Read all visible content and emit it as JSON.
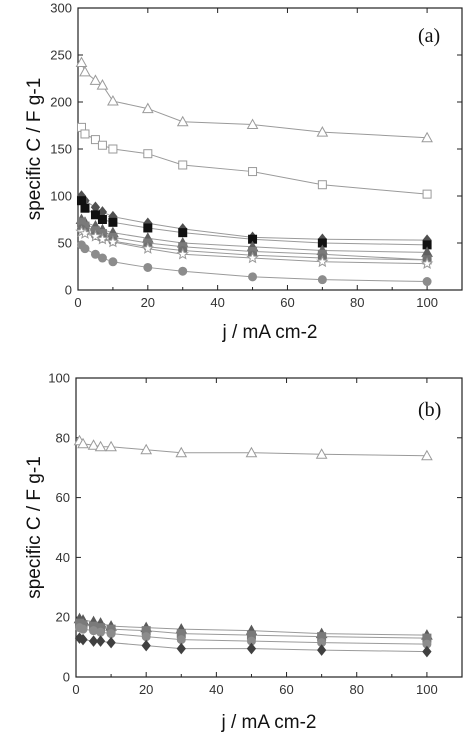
{
  "chart_data": [
    {
      "type": "line",
      "panel_label": "(a)",
      "xlabel": "j / mA cm-2",
      "ylabel": "specific C / F g-1",
      "xlim": [
        0,
        110
      ],
      "ylim": [
        0,
        300
      ],
      "x_ticks": [
        "0",
        "20",
        "40",
        "60",
        "80",
        "100"
      ],
      "y_ticks": [
        "0",
        "50",
        "100",
        "150",
        "200",
        "250",
        "300"
      ],
      "grid": false,
      "series": [
        {
          "marker": "triangle-open",
          "color": "#8a8a8a",
          "x": [
            1,
            2,
            5,
            7,
            10,
            20,
            30,
            50,
            70,
            100
          ],
          "y": [
            242,
            232,
            223,
            218,
            201,
            193,
            179,
            176,
            168,
            162
          ]
        },
        {
          "marker": "square-open",
          "color": "#8a8a8a",
          "x": [
            1,
            2,
            5,
            7,
            10,
            20,
            30,
            50,
            70,
            100
          ],
          "y": [
            173,
            166,
            160,
            154,
            150,
            145,
            133,
            126,
            112,
            102
          ]
        },
        {
          "marker": "diamond",
          "color": "#505050",
          "x": [
            1,
            2,
            5,
            7,
            10,
            20,
            30,
            50,
            70,
            100
          ],
          "y": [
            100,
            95,
            88,
            83,
            78,
            71,
            65,
            56,
            54,
            53
          ]
        },
        {
          "marker": "square",
          "color": "#111111",
          "x": [
            1,
            2,
            5,
            7,
            10,
            20,
            30,
            50,
            70,
            100
          ],
          "y": [
            95,
            87,
            80,
            75,
            72,
            66,
            61,
            54,
            50,
            48
          ]
        },
        {
          "marker": "triangle",
          "color": "#606060",
          "x": [
            1,
            2,
            5,
            7,
            10,
            20,
            30,
            50,
            70,
            100
          ],
          "y": [
            75,
            72,
            68,
            64,
            61,
            55,
            50,
            46,
            42,
            40
          ]
        },
        {
          "marker": "square",
          "color": "#7a7a7a",
          "x": [
            1,
            2,
            5,
            7,
            10,
            20,
            30,
            50,
            70,
            100
          ],
          "y": [
            72,
            68,
            63,
            60,
            56,
            50,
            46,
            41,
            38,
            32
          ]
        },
        {
          "marker": "circle",
          "color": "#707070",
          "x": [
            1,
            2,
            5,
            7,
            10,
            20,
            30,
            50,
            70,
            100
          ],
          "y": [
            65,
            62,
            58,
            55,
            52,
            46,
            42,
            37,
            34,
            32
          ]
        },
        {
          "marker": "star-open",
          "color": "#707070",
          "x": [
            1,
            2,
            5,
            7,
            10,
            20,
            30,
            50,
            70,
            100
          ],
          "y": [
            62,
            60,
            57,
            54,
            51,
            44,
            38,
            34,
            30,
            28
          ]
        },
        {
          "marker": "circle",
          "color": "#8c8c8c",
          "x": [
            1,
            2,
            5,
            7,
            10,
            20,
            30,
            50,
            70,
            100
          ],
          "y": [
            48,
            44,
            38,
            34,
            30,
            24,
            20,
            14,
            11,
            9
          ]
        }
      ]
    },
    {
      "type": "line",
      "panel_label": "(b)",
      "xlabel": "j / mA cm-2",
      "ylabel": "specific C / F g-1",
      "xlim": [
        0,
        110
      ],
      "ylim": [
        0,
        100
      ],
      "x_ticks": [
        "0",
        "20",
        "40",
        "60",
        "80",
        "100"
      ],
      "y_ticks": [
        "0",
        "20",
        "40",
        "60",
        "80",
        "100"
      ],
      "grid": false,
      "series": [
        {
          "marker": "triangle-open",
          "color": "#8a8a8a",
          "x": [
            1,
            2,
            5,
            7,
            10,
            20,
            30,
            50,
            70,
            100
          ],
          "y": [
            79,
            78,
            77.5,
            77,
            77,
            76,
            75,
            75,
            74.5,
            74
          ]
        },
        {
          "marker": "triangle",
          "color": "#5a5a5a",
          "x": [
            1,
            2,
            5,
            7,
            10,
            20,
            30,
            50,
            70,
            100
          ],
          "y": [
            19.5,
            19,
            18.5,
            18,
            17,
            16.5,
            16,
            15.5,
            14.5,
            14
          ]
        },
        {
          "marker": "square",
          "color": "#7a7a7a",
          "x": [
            1,
            2,
            5,
            7,
            10,
            20,
            30,
            50,
            70,
            100
          ],
          "y": [
            18,
            17.5,
            17,
            16.5,
            16,
            15.5,
            14.5,
            14,
            13.5,
            13
          ]
        },
        {
          "marker": "circle",
          "color": "#8c8c8c",
          "x": [
            1,
            2,
            5,
            7,
            10,
            20,
            30,
            50,
            70,
            100
          ],
          "y": [
            16.5,
            16,
            15.5,
            15,
            14.5,
            13.5,
            12.5,
            12,
            11.5,
            11
          ]
        },
        {
          "marker": "diamond",
          "color": "#404040",
          "x": [
            1,
            2,
            5,
            7,
            10,
            20,
            30,
            50,
            70,
            100
          ],
          "y": [
            13,
            12.5,
            12,
            12,
            11.5,
            10.5,
            9.5,
            9.5,
            9,
            8.5
          ]
        }
      ]
    }
  ]
}
